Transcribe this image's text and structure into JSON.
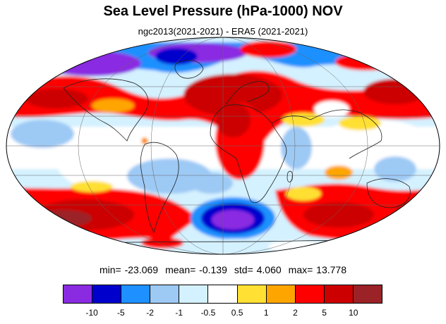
{
  "title": "Sea Level Pressure (hPa-1000) NOV",
  "subtitle": "ngc2013(2021-2021) - ERA5 (2021-2021)",
  "stats": {
    "min": "min= -23.069",
    "mean": "mean=  -0.139",
    "std": "std=   4.060",
    "max": "max=  13.778"
  },
  "colorbar": {
    "colors": [
      "#8a2be2",
      "#0000cd",
      "#1e90ff",
      "#9dc9f5",
      "#d4f1ff",
      "#ffffff",
      "#ffe033",
      "#ffa500",
      "#ff0000",
      "#cc0000",
      "#9b2226"
    ],
    "tick_labels": [
      "-10",
      "-5",
      "-2",
      "-1",
      "-0.5",
      "0.5",
      "1",
      "2",
      "5",
      "10"
    ]
  },
  "map": {
    "projection": "Mollweide",
    "grid": true
  }
}
